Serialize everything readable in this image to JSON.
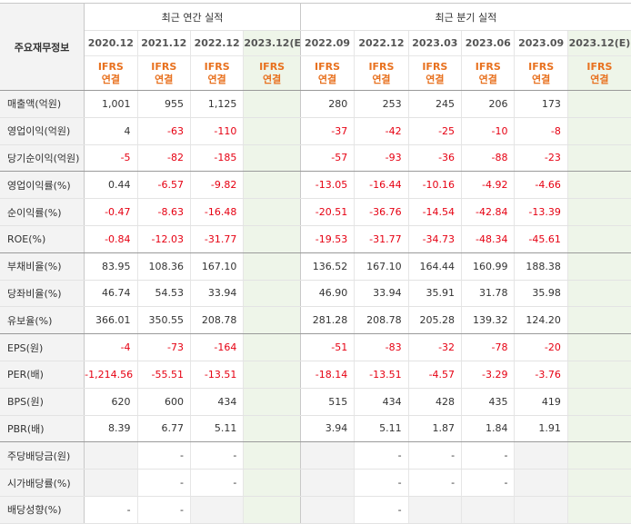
{
  "header": {
    "row_label_title": "주요재무정보",
    "annual_group": "최근 연간 실적",
    "quarter_group": "최근 분기 실적"
  },
  "periods": [
    {
      "label": "2020.12",
      "estimate": false,
      "basis1": "IFRS",
      "basis2": "연결"
    },
    {
      "label": "2021.12",
      "estimate": false,
      "basis1": "IFRS",
      "basis2": "연결"
    },
    {
      "label": "2022.12",
      "estimate": false,
      "basis1": "IFRS",
      "basis2": "연결"
    },
    {
      "label": "2023.12(E)",
      "estimate": true,
      "basis1": "IFRS",
      "basis2": "연결"
    },
    {
      "label": "2022.09",
      "estimate": false,
      "basis1": "IFRS",
      "basis2": "연결"
    },
    {
      "label": "2022.12",
      "estimate": false,
      "basis1": "IFRS",
      "basis2": "연결"
    },
    {
      "label": "2023.03",
      "estimate": false,
      "basis1": "IFRS",
      "basis2": "연결"
    },
    {
      "label": "2023.06",
      "estimate": false,
      "basis1": "IFRS",
      "basis2": "연결"
    },
    {
      "label": "2023.09",
      "estimate": false,
      "basis1": "IFRS",
      "basis2": "연결"
    },
    {
      "label": "2023.12(E)",
      "estimate": true,
      "basis1": "IFRS",
      "basis2": "연결"
    }
  ],
  "rows": [
    {
      "label": "매출액(억원)",
      "values": [
        "1,001",
        "955",
        "1,125",
        "",
        "280",
        "253",
        "245",
        "206",
        "173",
        ""
      ]
    },
    {
      "label": "영업이익(억원)",
      "values": [
        "4",
        "-63",
        "-110",
        "",
        "-37",
        "-42",
        "-25",
        "-10",
        "-8",
        ""
      ]
    },
    {
      "label": "당기순이익(억원)",
      "values": [
        "-5",
        "-82",
        "-185",
        "",
        "-57",
        "-93",
        "-36",
        "-88",
        "-23",
        ""
      ],
      "sep": true
    },
    {
      "label": "영업이익률(%)",
      "values": [
        "0.44",
        "-6.57",
        "-9.82",
        "",
        "-13.05",
        "-16.44",
        "-10.16",
        "-4.92",
        "-4.66",
        ""
      ]
    },
    {
      "label": "순이익률(%)",
      "values": [
        "-0.47",
        "-8.63",
        "-16.48",
        "",
        "-20.51",
        "-36.76",
        "-14.54",
        "-42.84",
        "-13.39",
        ""
      ]
    },
    {
      "label": "ROE(%)",
      "values": [
        "-0.84",
        "-12.03",
        "-31.77",
        "",
        "-19.53",
        "-31.77",
        "-34.73",
        "-48.34",
        "-45.61",
        ""
      ],
      "sep": true
    },
    {
      "label": "부채비율(%)",
      "values": [
        "83.95",
        "108.36",
        "167.10",
        "",
        "136.52",
        "167.10",
        "164.44",
        "160.99",
        "188.38",
        ""
      ]
    },
    {
      "label": "당좌비율(%)",
      "values": [
        "46.74",
        "54.53",
        "33.94",
        "",
        "46.90",
        "33.94",
        "35.91",
        "31.78",
        "35.98",
        ""
      ]
    },
    {
      "label": "유보율(%)",
      "values": [
        "366.01",
        "350.55",
        "208.78",
        "",
        "281.28",
        "208.78",
        "205.28",
        "139.32",
        "124.20",
        ""
      ],
      "sep": true
    },
    {
      "label": "EPS(원)",
      "values": [
        "-4",
        "-73",
        "-164",
        "",
        "-51",
        "-83",
        "-32",
        "-78",
        "-20",
        ""
      ]
    },
    {
      "label": "PER(배)",
      "values": [
        "-1,214.56",
        "-55.51",
        "-13.51",
        "",
        "-18.14",
        "-13.51",
        "-4.57",
        "-3.29",
        "-3.76",
        ""
      ]
    },
    {
      "label": "BPS(원)",
      "values": [
        "620",
        "600",
        "434",
        "",
        "515",
        "434",
        "428",
        "435",
        "419",
        ""
      ]
    },
    {
      "label": "PBR(배)",
      "values": [
        "8.39",
        "6.77",
        "5.11",
        "",
        "3.94",
        "5.11",
        "1.87",
        "1.84",
        "1.91",
        ""
      ],
      "sep": true
    },
    {
      "label": "주당배당금(원)",
      "values": [
        "",
        "-",
        "-",
        "",
        "",
        "-",
        "-",
        "-",
        "",
        ""
      ],
      "grey": [
        0,
        4,
        8
      ]
    },
    {
      "label": "시가배당률(%)",
      "values": [
        "",
        "-",
        "-",
        "",
        "",
        "-",
        "-",
        "-",
        "",
        ""
      ],
      "grey": [
        0,
        4,
        8
      ]
    },
    {
      "label": "배당성향(%)",
      "values": [
        "-",
        "-",
        "",
        "",
        "",
        "-",
        "",
        "",
        "",
        ""
      ],
      "grey": [
        2,
        3,
        4,
        6,
        7,
        8
      ]
    }
  ],
  "colors": {
    "accent_orange": "#e8711f",
    "negative_red": "#e60012",
    "estimate_bg": "#eef5e9",
    "label_bg": "#f3f3f3"
  }
}
